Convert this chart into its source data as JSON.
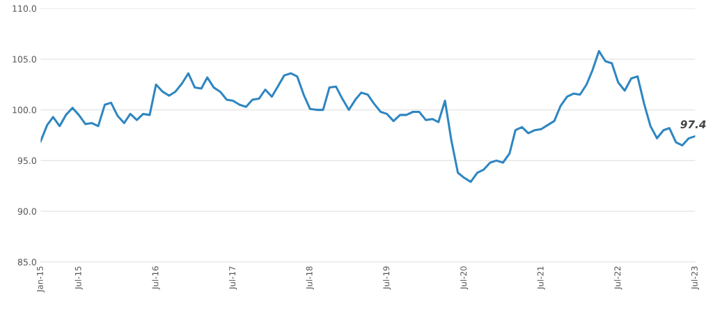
{
  "chart_data": {
    "type": "line",
    "x": [
      "2015-01",
      "2015-02",
      "2015-03",
      "2015-04",
      "2015-05",
      "2015-06",
      "2015-07",
      "2015-08",
      "2015-09",
      "2015-10",
      "2015-11",
      "2015-12",
      "2016-01",
      "2016-02",
      "2016-03",
      "2016-04",
      "2016-05",
      "2016-06",
      "2016-07",
      "2016-08",
      "2016-09",
      "2016-10",
      "2016-11",
      "2016-12",
      "2017-01",
      "2017-02",
      "2017-03",
      "2017-04",
      "2017-05",
      "2017-06",
      "2017-07",
      "2017-08",
      "2017-09",
      "2017-10",
      "2017-11",
      "2017-12",
      "2018-01",
      "2018-02",
      "2018-03",
      "2018-04",
      "2018-05",
      "2018-06",
      "2018-07",
      "2018-08",
      "2018-09",
      "2018-10",
      "2018-11",
      "2018-12",
      "2019-01",
      "2019-02",
      "2019-03",
      "2019-04",
      "2019-05",
      "2019-06",
      "2019-07",
      "2019-08",
      "2019-09",
      "2019-10",
      "2019-11",
      "2019-12",
      "2020-01",
      "2020-02",
      "2020-03",
      "2020-04",
      "2020-05",
      "2020-06",
      "2020-07",
      "2020-08",
      "2020-09",
      "2020-10",
      "2020-11",
      "2020-12",
      "2021-01",
      "2021-02",
      "2021-03",
      "2021-04",
      "2021-05",
      "2021-06",
      "2021-07",
      "2021-08",
      "2021-09",
      "2021-10",
      "2021-11",
      "2021-12",
      "2022-01",
      "2022-02",
      "2022-03",
      "2022-04",
      "2022-05",
      "2022-06",
      "2022-07",
      "2022-08",
      "2022-09",
      "2022-10",
      "2022-11",
      "2022-12",
      "2023-01",
      "2023-02",
      "2023-03",
      "2023-04",
      "2023-05",
      "2023-06",
      "2023-07"
    ],
    "series": [
      {
        "color": "#2e86c1",
        "values": [
          96.9,
          98.5,
          99.3,
          98.4,
          99.5,
          100.2,
          99.5,
          98.6,
          98.7,
          98.4,
          100.5,
          100.7,
          99.4,
          98.7,
          99.6,
          99.0,
          99.6,
          99.5,
          102.5,
          101.8,
          101.4,
          101.8,
          102.6,
          103.6,
          102.2,
          102.1,
          103.2,
          102.2,
          101.8,
          101.0,
          100.9,
          100.5,
          100.3,
          101.0,
          101.1,
          102.0,
          101.3,
          102.4,
          103.4,
          103.6,
          103.3,
          101.5,
          100.1,
          100.0,
          100.0,
          102.2,
          102.3,
          101.1,
          100.0,
          101.0,
          101.7,
          101.5,
          100.6,
          99.8,
          99.6,
          98.9,
          99.5,
          99.5,
          99.8,
          99.8,
          99.0,
          99.1,
          98.8,
          100.9,
          97.0,
          93.8,
          93.3,
          92.9,
          93.8,
          94.1,
          94.8,
          95.0,
          94.8,
          95.7,
          98.0,
          98.3,
          97.7,
          98.0,
          98.1,
          98.5,
          98.9,
          100.4,
          101.3,
          101.6,
          101.5,
          102.5,
          103.9,
          105.8,
          104.8,
          104.6,
          102.7,
          101.9,
          103.1,
          103.3,
          100.6,
          98.4,
          97.2,
          98.0,
          98.2,
          96.8,
          96.5,
          97.2,
          97.4
        ]
      }
    ],
    "xlim": [
      "2015-01",
      "2023-07"
    ],
    "xticks": [
      {
        "value": "2015-01",
        "label": "Jan-15"
      },
      {
        "value": "2015-07",
        "label": "Jul-15"
      },
      {
        "value": "2016-07",
        "label": "Jul-16"
      },
      {
        "value": "2017-07",
        "label": "Jul-17"
      },
      {
        "value": "2018-07",
        "label": "Jul-18"
      },
      {
        "value": "2019-07",
        "label": "Jul-19"
      },
      {
        "value": "2020-07",
        "label": "Jul-20"
      },
      {
        "value": "2021-07",
        "label": "Jul-21"
      },
      {
        "value": "2022-07",
        "label": "Jul-22"
      },
      {
        "value": "2023-07",
        "label": "Jul-23"
      }
    ],
    "ylim": [
      85,
      110
    ],
    "yticks": [
      {
        "value": 85,
        "label": "85.0"
      },
      {
        "value": 90,
        "label": "90.0"
      },
      {
        "value": 95,
        "label": "95.0"
      },
      {
        "value": 100,
        "label": "100.0"
      },
      {
        "value": 105,
        "label": "105.0"
      },
      {
        "value": 110,
        "label": "110.0"
      }
    ],
    "grid": "y",
    "annotations": [
      {
        "text": "97.4",
        "x": "2023-07",
        "y": 97.4
      }
    ]
  }
}
